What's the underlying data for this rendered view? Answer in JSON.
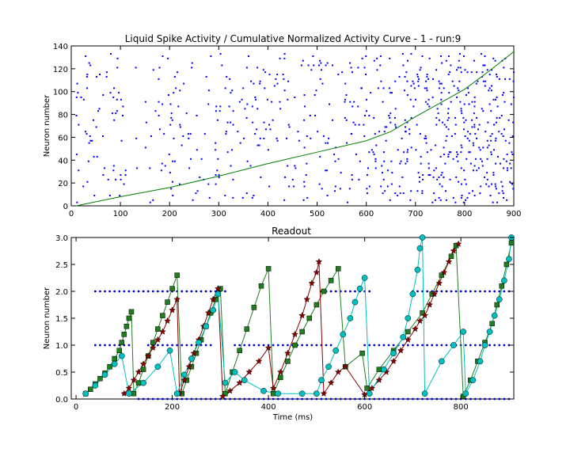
{
  "chart_data": [
    {
      "type": "scatter",
      "title": "Liquid Spike Activity / Cumulative Normalized Activity Curve - 1 - run:9",
      "xlabel": "",
      "ylabel": "Neuron number",
      "xlim": [
        0,
        900
      ],
      "ylim": [
        0,
        140
      ],
      "xticks": [
        0,
        100,
        200,
        300,
        400,
        500,
        600,
        700,
        800,
        900
      ],
      "yticks": [
        0,
        20,
        40,
        60,
        80,
        100,
        120,
        140
      ],
      "spike_color": "#0000ff",
      "curve_color": "#008000",
      "spike_raster": {
        "x_range": [
          10,
          900
        ],
        "neurons": [
          3,
          133
        ],
        "density_profile": [
          [
            0,
            0.08
          ],
          [
            400,
            0.09
          ],
          [
            520,
            0.11
          ],
          [
            600,
            0.14
          ],
          [
            700,
            0.2
          ],
          [
            800,
            0.24
          ],
          [
            900,
            0.24
          ]
        ]
      },
      "series": [
        {
          "values_xy": [
            [
              10,
              0
            ],
            [
              100,
              8
            ],
            [
              200,
              16
            ],
            [
              300,
              26
            ],
            [
              400,
              37
            ],
            [
              500,
              47
            ],
            [
              600,
              57
            ],
            [
              650,
              65
            ],
            [
              700,
              78
            ],
            [
              750,
              90
            ],
            [
              800,
              102
            ],
            [
              850,
              118
            ],
            [
              900,
              135
            ]
          ]
        }
      ]
    },
    {
      "type": "line",
      "title": "Readout",
      "xlabel": "Time (ms)",
      "ylabel": "Neuron number",
      "xlim": [
        -10,
        910
      ],
      "ylim": [
        0,
        3.0
      ],
      "xticks": [
        0,
        200,
        400,
        600,
        800
      ],
      "yticks": [
        0.0,
        0.5,
        1.0,
        1.5,
        2.0,
        2.5,
        3.0
      ],
      "dot_rows": [
        {
          "y": 2.0,
          "segments": [
            [
              40,
              310
            ],
            [
              510,
              610
            ],
            [
              700,
              900
            ]
          ]
        },
        {
          "y": 1.0,
          "segments": [
            [
              40,
              110
            ],
            [
              150,
              280
            ],
            [
              330,
              530
            ],
            [
              600,
              900
            ]
          ]
        },
        {
          "y": 0.0,
          "segments": [
            [
              130,
              900
            ]
          ]
        }
      ],
      "series": [
        {
          "color": "#1f7f1f",
          "marker": "square",
          "points": [
            [
              20,
              0.1
            ],
            [
              30,
              0.18
            ],
            [
              40,
              0.28
            ],
            [
              50,
              0.38
            ],
            [
              60,
              0.48
            ],
            [
              70,
              0.6
            ],
            [
              80,
              0.75
            ],
            [
              90,
              0.9
            ],
            [
              95,
              1.05
            ],
            [
              100,
              1.2
            ],
            [
              105,
              1.35
            ],
            [
              110,
              1.5
            ],
            [
              115,
              1.62
            ],
            [
              120,
              0.1
            ],
            [
              130,
              0.3
            ],
            [
              140,
              0.55
            ],
            [
              150,
              0.8
            ],
            [
              160,
              1.05
            ],
            [
              170,
              1.3
            ],
            [
              180,
              1.55
            ],
            [
              190,
              1.8
            ],
            [
              200,
              2.05
            ],
            [
              210,
              2.3
            ],
            [
              220,
              0.1
            ],
            [
              230,
              0.35
            ],
            [
              240,
              0.6
            ],
            [
              250,
              0.85
            ],
            [
              260,
              1.1
            ],
            [
              270,
              1.35
            ],
            [
              280,
              1.6
            ],
            [
              290,
              1.85
            ],
            [
              300,
              2.05
            ],
            [
              310,
              0.1
            ],
            [
              325,
              0.5
            ],
            [
              340,
              0.9
            ],
            [
              355,
              1.3
            ],
            [
              370,
              1.7
            ],
            [
              385,
              2.1
            ],
            [
              400,
              2.42
            ],
            [
              410,
              0.1
            ],
            [
              425,
              0.4
            ],
            [
              440,
              0.7
            ],
            [
              455,
              1.0
            ],
            [
              470,
              1.25
            ],
            [
              485,
              1.5
            ],
            [
              500,
              1.75
            ],
            [
              515,
              2.0
            ],
            [
              530,
              2.2
            ],
            [
              545,
              2.42
            ],
            [
              560,
              0.6
            ],
            [
              595,
              0.85
            ],
            [
              605,
              0.2
            ],
            [
              630,
              0.55
            ],
            [
              660,
              0.9
            ],
            [
              690,
              1.25
            ],
            [
              720,
              1.6
            ],
            [
              740,
              1.95
            ],
            [
              760,
              2.3
            ],
            [
              780,
              2.65
            ],
            [
              790,
              2.85
            ],
            [
              805,
              0.05
            ],
            [
              820,
              0.35
            ],
            [
              835,
              0.7
            ],
            [
              850,
              1.05
            ],
            [
              865,
              1.4
            ],
            [
              875,
              1.75
            ],
            [
              885,
              2.1
            ],
            [
              895,
              2.5
            ],
            [
              905,
              2.9
            ]
          ]
        },
        {
          "color": "#8b0000",
          "marker": "star",
          "points": [
            [
              100,
              0.1
            ],
            [
              110,
              0.2
            ],
            [
              120,
              0.35
            ],
            [
              130,
              0.5
            ],
            [
              140,
              0.65
            ],
            [
              150,
              0.8
            ],
            [
              160,
              0.95
            ],
            [
              170,
              1.1
            ],
            [
              180,
              1.25
            ],
            [
              190,
              1.45
            ],
            [
              200,
              1.65
            ],
            [
              210,
              1.85
            ],
            [
              215,
              0.1
            ],
            [
              225,
              0.35
            ],
            [
              235,
              0.6
            ],
            [
              245,
              0.85
            ],
            [
              255,
              1.1
            ],
            [
              265,
              1.35
            ],
            [
              275,
              1.6
            ],
            [
              285,
              1.85
            ],
            [
              295,
              2.05
            ],
            [
              305,
              0.05
            ],
            [
              320,
              0.15
            ],
            [
              340,
              0.3
            ],
            [
              360,
              0.5
            ],
            [
              380,
              0.7
            ],
            [
              400,
              0.95
            ],
            [
              410,
              0.2
            ],
            [
              425,
              0.5
            ],
            [
              440,
              0.85
            ],
            [
              455,
              1.2
            ],
            [
              470,
              1.55
            ],
            [
              480,
              1.85
            ],
            [
              490,
              2.15
            ],
            [
              500,
              2.35
            ],
            [
              505,
              2.55
            ],
            [
              515,
              0.1
            ],
            [
              530,
              0.3
            ],
            [
              545,
              0.5
            ],
            [
              560,
              0.6
            ],
            [
              600,
              0.08
            ],
            [
              615,
              0.2
            ],
            [
              630,
              0.35
            ],
            [
              645,
              0.5
            ],
            [
              660,
              0.7
            ],
            [
              675,
              0.9
            ],
            [
              690,
              1.1
            ],
            [
              705,
              1.3
            ],
            [
              715,
              1.45
            ],
            [
              725,
              1.55
            ],
            [
              735,
              1.75
            ],
            [
              745,
              1.95
            ],
            [
              755,
              2.15
            ],
            [
              765,
              2.35
            ],
            [
              775,
              2.55
            ],
            [
              785,
              2.75
            ],
            [
              795,
              2.88
            ]
          ]
        },
        {
          "color": "#00bfbf",
          "marker": "circle",
          "points": [
            [
              20,
              0.1
            ],
            [
              40,
              0.25
            ],
            [
              60,
              0.45
            ],
            [
              80,
              0.65
            ],
            [
              95,
              0.8
            ],
            [
              110,
              0.1
            ],
            [
              140,
              0.3
            ],
            [
              170,
              0.6
            ],
            [
              195,
              0.9
            ],
            [
              210,
              0.1
            ],
            [
              225,
              0.45
            ],
            [
              240,
              0.75
            ],
            [
              255,
              1.05
            ],
            [
              270,
              1.35
            ],
            [
              285,
              1.65
            ],
            [
              295,
              1.95
            ],
            [
              310,
              0.3
            ],
            [
              330,
              0.5
            ],
            [
              350,
              0.35
            ],
            [
              390,
              0.15
            ],
            [
              420,
              0.1
            ],
            [
              470,
              0.1
            ],
            [
              500,
              0.1
            ],
            [
              510,
              0.35
            ],
            [
              525,
              0.6
            ],
            [
              540,
              0.9
            ],
            [
              555,
              1.2
            ],
            [
              570,
              1.5
            ],
            [
              580,
              1.8
            ],
            [
              590,
              2.05
            ],
            [
              600,
              2.25
            ],
            [
              610,
              0.1
            ],
            [
              640,
              0.55
            ],
            [
              660,
              0.85
            ],
            [
              680,
              1.15
            ],
            [
              690,
              1.5
            ],
            [
              700,
              1.95
            ],
            [
              710,
              2.4
            ],
            [
              715,
              2.8
            ],
            [
              720,
              3.0
            ],
            [
              725,
              0.1
            ],
            [
              760,
              0.7
            ],
            [
              785,
              1.0
            ],
            [
              805,
              1.25
            ],
            [
              810,
              0.1
            ],
            [
              825,
              0.35
            ],
            [
              840,
              0.7
            ],
            [
              850,
              1.0
            ],
            [
              860,
              1.25
            ],
            [
              870,
              1.55
            ],
            [
              880,
              1.85
            ],
            [
              890,
              2.2
            ],
            [
              900,
              2.6
            ],
            [
              905,
              3.0
            ]
          ]
        }
      ]
    }
  ]
}
